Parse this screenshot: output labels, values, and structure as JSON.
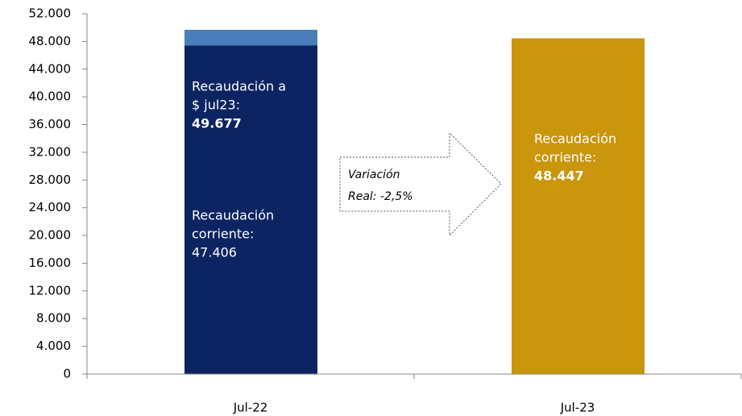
{
  "chart_data": {
    "type": "bar",
    "stacked": true,
    "categories": [
      "Jul-22",
      "Jul-23"
    ],
    "series": [
      {
        "colors": [
          "#0c2461",
          "#c9960c"
        ],
        "values": [
          47406,
          48447
        ]
      },
      {
        "color": "#4a7ebb",
        "values": [
          2271,
          null
        ]
      }
    ],
    "ylim": [
      0,
      52000
    ],
    "yticks": [
      0,
      {
        "value": 4000,
        "label": "4.000"
      },
      {
        "value": 8000,
        "label": "8.000"
      },
      {
        "value": 12000,
        "label": "12.000"
      },
      {
        "value": 16000,
        "label": "16.000"
      },
      {
        "value": 20000,
        "label": "20.000"
      },
      {
        "value": 24000,
        "label": "24.000"
      },
      {
        "value": 28000,
        "label": "28.000"
      },
      {
        "value": 32000,
        "label": "32.000"
      },
      {
        "value": 36000,
        "label": "36.000"
      },
      {
        "value": 40000,
        "label": "40.000"
      },
      {
        "value": 44000,
        "label": "44.000"
      },
      {
        "value": 48000,
        "label": "48.000"
      },
      {
        "value": 52000,
        "label": "52.000"
      }
    ],
    "annotations": [
      {
        "lines": [
          "Recaudación a",
          "$ jul23:"
        ],
        "bold_line": "49.677"
      },
      {
        "lines": [
          "Recaudación",
          "corriente:",
          "47.406"
        ]
      },
      {
        "lines": [
          "Recaudación",
          "corriente:"
        ],
        "bold_line": "48.447"
      },
      {
        "lines": [
          "Variación",
          "Real: -2,5%"
        ]
      }
    ]
  }
}
